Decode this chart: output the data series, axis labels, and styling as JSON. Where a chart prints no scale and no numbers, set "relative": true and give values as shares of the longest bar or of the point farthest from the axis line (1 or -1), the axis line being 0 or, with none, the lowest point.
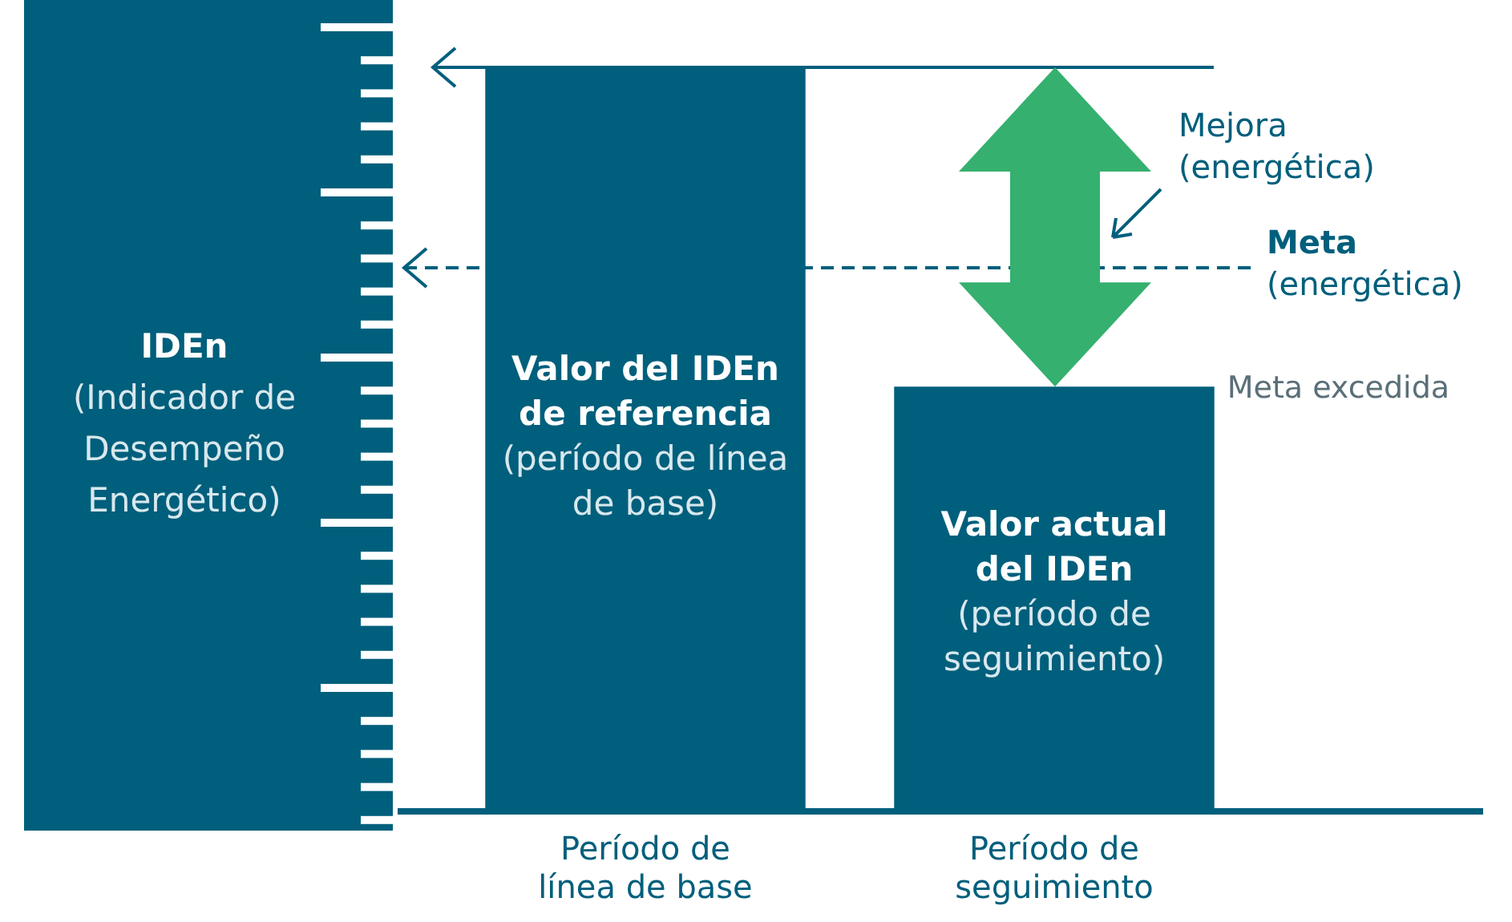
{
  "chart_data": {
    "type": "bar",
    "relative": true,
    "ylabel": "IDEn\n(Indicador de Desempeño Energético)",
    "categories": [
      "Período de línea de base",
      "Período de seguimiento"
    ],
    "values": [
      1,
      0.57
    ],
    "color": "#005f7c",
    "ref_lines": [
      {
        "axis": "y",
        "value": 1,
        "color": "#005f7c",
        "line_style": "solid"
      },
      {
        "axis": "y",
        "value": 0.73,
        "label": "Meta\n(energética)",
        "color": "#005f7c",
        "line_style": "dashed"
      }
    ],
    "annotations": [
      "Mejora\n(energética)",
      "Meta excedida",
      "Valor del IDEn\nde referencia\n(período de línea\nde base)",
      "Valor actual\ndel IDEn\n(período de\nseguimiento)"
    ],
    "grid": false,
    "legend": false
  }
}
